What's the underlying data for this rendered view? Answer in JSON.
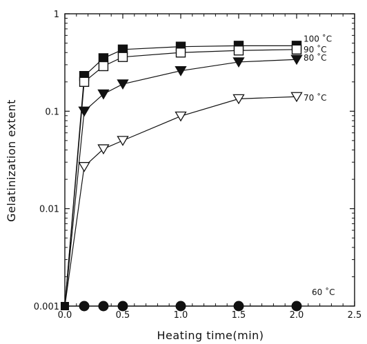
{
  "chart_data": {
    "type": "line",
    "title": "",
    "xlabel": "Heating time(min)",
    "ylabel": "Gelatinization extent",
    "xlim": [
      0.0,
      2.5
    ],
    "ylim": [
      0.001,
      1
    ],
    "yscale": "log",
    "grid": false,
    "legend": "none (labels at line ends)",
    "x_ticks": [
      "0.0",
      "0.5",
      "1.0",
      "1.5",
      "2.0",
      "2.5"
    ],
    "y_ticks": [
      "0.001",
      "0.01",
      "0.1",
      "1"
    ],
    "series": [
      {
        "name": "100 ˚C",
        "marker": "filled-square",
        "x": [
          0.0,
          0.167,
          0.333,
          0.5,
          1.0,
          1.5,
          2.0
        ],
        "y": [
          0.001,
          0.23,
          0.35,
          0.43,
          0.46,
          0.47,
          0.47
        ]
      },
      {
        "name": "90 ˚C",
        "marker": "open-square",
        "x": [
          0.0,
          0.167,
          0.333,
          0.5,
          1.0,
          1.5,
          2.0
        ],
        "y": [
          0.001,
          0.2,
          0.29,
          0.36,
          0.4,
          0.42,
          0.43
        ]
      },
      {
        "name": "80 ˚C",
        "marker": "filled-triangle-down",
        "x": [
          0.0,
          0.167,
          0.333,
          0.5,
          1.0,
          1.5,
          2.0
        ],
        "y": [
          0.001,
          0.1,
          0.15,
          0.19,
          0.26,
          0.32,
          0.34
        ]
      },
      {
        "name": "70 ˚C",
        "marker": "open-triangle-down",
        "x": [
          0.0,
          0.167,
          0.333,
          0.5,
          1.0,
          1.5,
          2.0
        ],
        "y": [
          0.001,
          0.027,
          0.041,
          0.05,
          0.089,
          0.134,
          0.141
        ]
      },
      {
        "name": "60 ˚C",
        "marker": "filled-circle",
        "x": [
          0.0,
          0.167,
          0.333,
          0.5,
          1.0,
          1.5,
          2.0
        ],
        "y": [
          0.001,
          0.001,
          0.001,
          0.001,
          0.001,
          0.001,
          0.001
        ]
      }
    ]
  }
}
